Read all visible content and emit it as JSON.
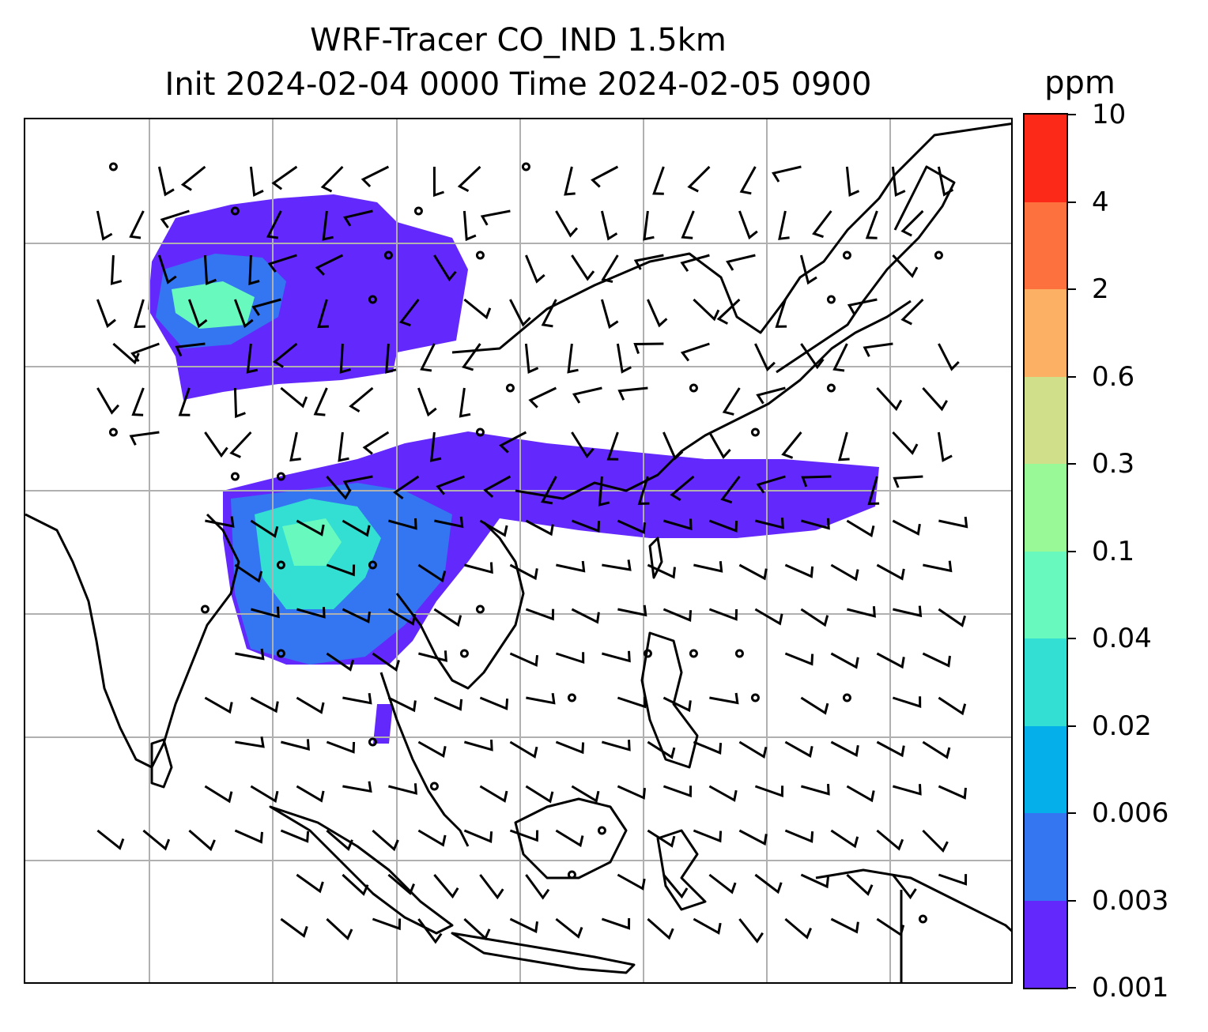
{
  "title": {
    "line1": "WRF-Tracer CO_IND 1.5km",
    "line2": "Init 2024-02-04 0000 Time 2024-02-05 0900"
  },
  "colorbar": {
    "unit": "ppm",
    "levels": [
      "0.001",
      "0.003",
      "0.006",
      "0.02",
      "0.04",
      "0.1",
      "0.3",
      "0.6",
      "2",
      "4",
      "10"
    ],
    "colors": [
      "#6329FC",
      "#3475F2",
      "#05B0EA",
      "#33DED3",
      "#68F9BF",
      "#99F997",
      "#D0E08A",
      "#FCB063",
      "#FC713E",
      "#FC2918"
    ]
  },
  "map": {
    "gridlines": true,
    "gridline_color": "#b0b0b0",
    "coastline_color": "#000000",
    "features": [
      "coastlines",
      "country-borders",
      "wind-barbs",
      "calm-wind-circles",
      "tracer-shading"
    ]
  }
}
